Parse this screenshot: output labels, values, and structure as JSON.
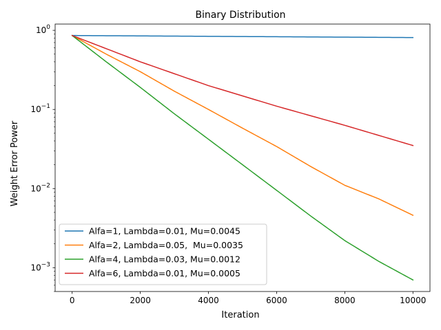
{
  "chart_data": {
    "type": "line",
    "title": "Binary Distribution",
    "xlabel": "Iteration",
    "ylabel": "Weight Error Power",
    "xlim": [
      -500,
      10500
    ],
    "ylim": [
      0.0005,
      1.2
    ],
    "yscale": "log",
    "xticks": [
      {
        "value": 0,
        "label": "0"
      },
      {
        "value": 2000,
        "label": "2000"
      },
      {
        "value": 4000,
        "label": "4000"
      },
      {
        "value": 6000,
        "label": "6000"
      },
      {
        "value": 8000,
        "label": "8000"
      },
      {
        "value": 10000,
        "label": "10000"
      }
    ],
    "yticks": [
      {
        "value": 1,
        "label": "10^0"
      },
      {
        "value": 0.1,
        "label": "10^-1"
      },
      {
        "value": 0.01,
        "label": "10^-2"
      },
      {
        "value": 0.001,
        "label": "10^-3"
      }
    ],
    "grid": false,
    "legend_position": "lower-left",
    "series": [
      {
        "name": "Alfa=1, Lambda=0.01, Mu=0.0045",
        "color": "#1f77b4",
        "x": [
          0,
          2000,
          4000,
          6000,
          8000,
          10000
        ],
        "y": [
          0.86,
          0.85,
          0.84,
          0.83,
          0.82,
          0.81
        ]
      },
      {
        "name": "Alfa=2, Lambda=0.05,  Mu=0.0035",
        "color": "#ff7f0e",
        "x": [
          0,
          1000,
          2000,
          3000,
          4000,
          5000,
          6000,
          7000,
          8000,
          9000,
          10000
        ],
        "y": [
          0.86,
          0.5,
          0.3,
          0.17,
          0.1,
          0.058,
          0.034,
          0.019,
          0.011,
          0.0074,
          0.0046
        ]
      },
      {
        "name": "Alfa=4, Lambda=0.03, Mu=0.0012",
        "color": "#2ca02c",
        "x": [
          0,
          1000,
          2000,
          3000,
          4000,
          5000,
          6000,
          7000,
          8000,
          9000,
          10000
        ],
        "y": [
          0.86,
          0.4,
          0.19,
          0.088,
          0.042,
          0.02,
          0.0095,
          0.0045,
          0.0022,
          0.0012,
          0.0007
        ]
      },
      {
        "name": "Alfa=6, Lambda=0.01, Mu=0.0005",
        "color": "#d62728",
        "x": [
          0,
          2000,
          4000,
          6000,
          8000,
          10000
        ],
        "y": [
          0.86,
          0.4,
          0.2,
          0.11,
          0.063,
          0.035
        ]
      }
    ]
  }
}
